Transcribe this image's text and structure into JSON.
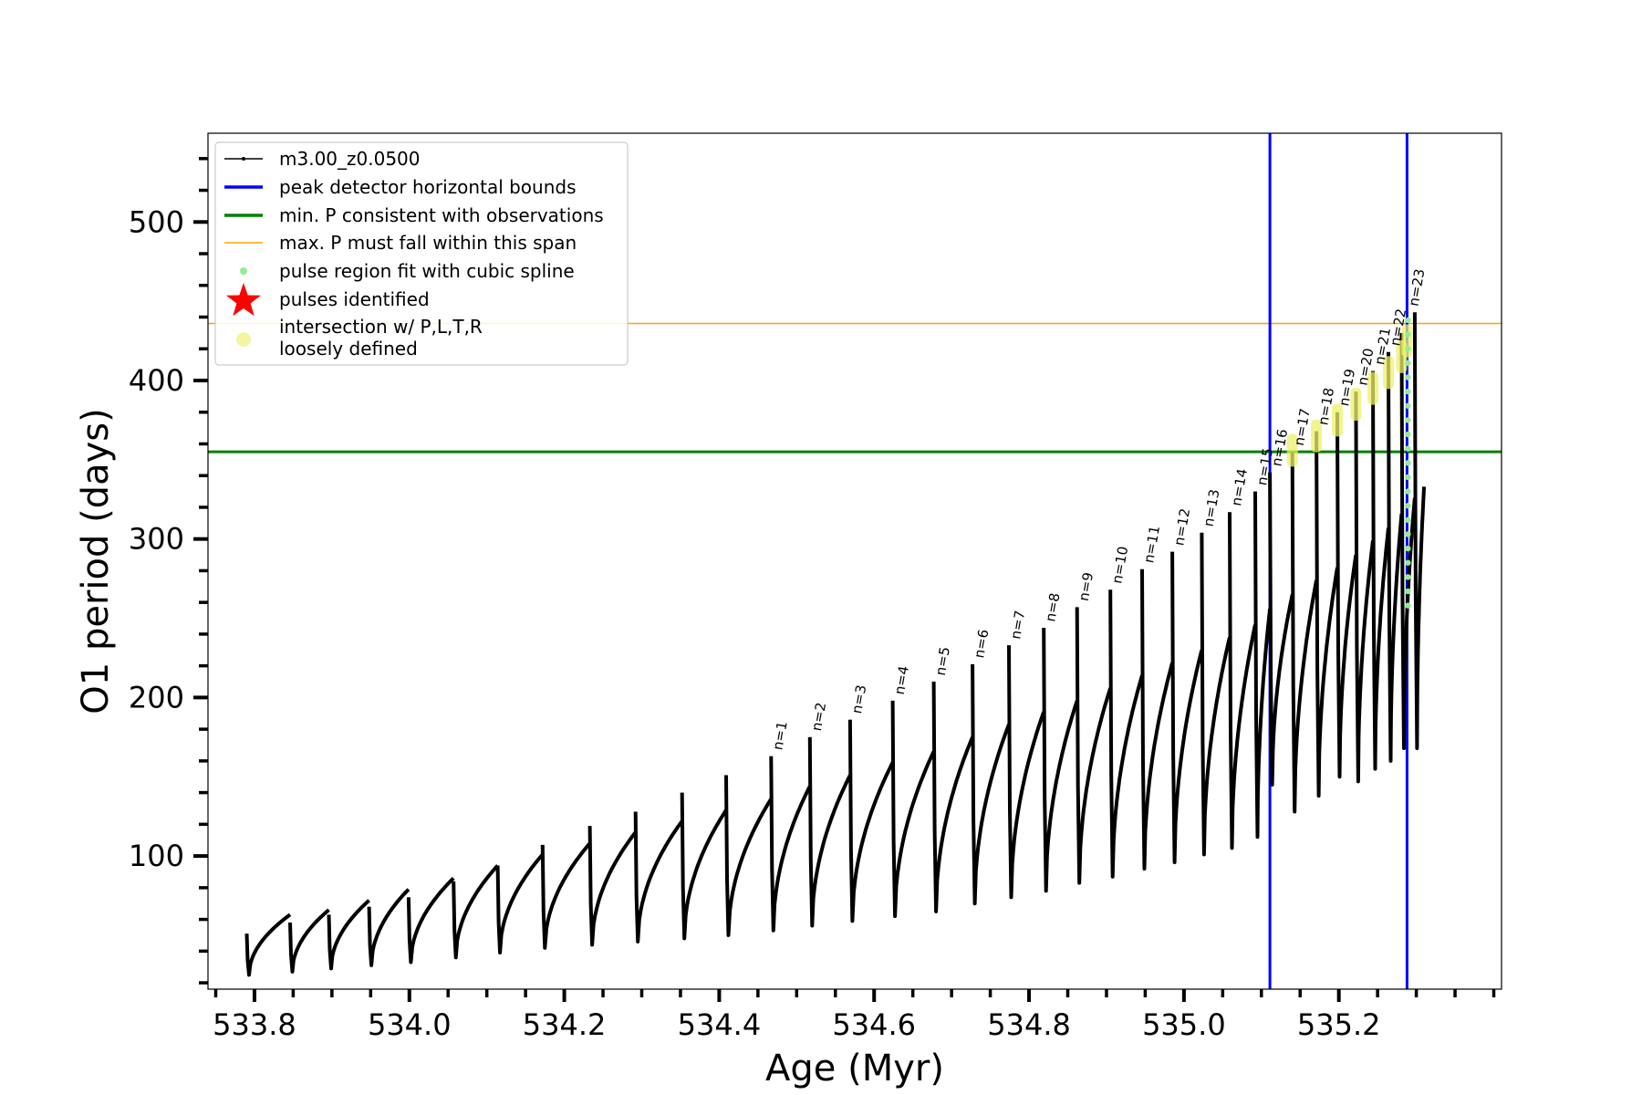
{
  "chart_data": {
    "type": "line",
    "title": "",
    "xlabel": "Age (Myr)",
    "ylabel": "O1 period (days)",
    "xlim": [
      533.74,
      535.41
    ],
    "ylim": [
      16,
      556
    ],
    "xticks": [
      533.8,
      534.0,
      534.2,
      534.4,
      534.6,
      534.8,
      535.0,
      535.2
    ],
    "xtick_labels": [
      "533.8",
      "534.0",
      "534.2",
      "534.4",
      "534.6",
      "534.8",
      "535.0",
      "535.2"
    ],
    "yticks": [
      100,
      200,
      300,
      400,
      500
    ],
    "ytick_labels": [
      "100",
      "200",
      "300",
      "400",
      "500"
    ],
    "grid": false,
    "legend_position": "top-left",
    "legend": [
      {
        "label": "m3.00_z0.0500",
        "kind": "line-marker",
        "color": "#000000"
      },
      {
        "label": "peak detector horizontal bounds",
        "kind": "line",
        "color": "#0000ff"
      },
      {
        "label": "min. P consistent with observations",
        "kind": "line",
        "color": "#008000"
      },
      {
        "label": "max. P must fall within this span",
        "kind": "thin-line",
        "color": "#ffa500"
      },
      {
        "label": "pulse region fit with cubic spline",
        "kind": "dot",
        "color": "#90ee90"
      },
      {
        "label": "pulses identified",
        "kind": "star",
        "color": "#ff0000"
      },
      {
        "label": "intersection w/ P,L,T,R",
        "label2": "loosely defined",
        "kind": "big-dot",
        "color": "#f5f5a0"
      }
    ],
    "reference_lines": {
      "vertical_blue_x": [
        535.111,
        535.288
      ],
      "horizontal_green_y": 355,
      "horizontal_orange_y": 436
    },
    "series": [
      {
        "name": "m3.00_z0.0500",
        "color": "#000000",
        "cycles": [
          {
            "start": 533.79,
            "end": 533.846,
            "spike": 51,
            "low": 25,
            "rise": 63
          },
          {
            "start": 533.846,
            "end": 533.896,
            "spike": 58,
            "low": 27,
            "rise": 66
          },
          {
            "start": 533.896,
            "end": 533.948,
            "spike": 63,
            "low": 29,
            "rise": 72
          },
          {
            "start": 533.948,
            "end": 533.999,
            "spike": 68,
            "low": 31,
            "rise": 79
          },
          {
            "start": 533.999,
            "end": 534.057,
            "spike": 74,
            "low": 33,
            "rise": 86
          },
          {
            "start": 534.057,
            "end": 534.114,
            "spike": 84,
            "low": 36,
            "rise": 94
          },
          {
            "start": 534.114,
            "end": 534.172,
            "spike": 94,
            "low": 39,
            "rise": 101
          },
          {
            "start": 534.172,
            "end": 534.233,
            "spike": 107,
            "low": 42,
            "rise": 108
          },
          {
            "start": 534.233,
            "end": 534.292,
            "spike": 119,
            "low": 44,
            "rise": 115
          },
          {
            "start": 534.292,
            "end": 534.352,
            "spike": 128,
            "low": 46,
            "rise": 122
          },
          {
            "start": 534.352,
            "end": 534.409,
            "spike": 140,
            "low": 48,
            "rise": 129
          },
          {
            "start": 534.409,
            "end": 534.467,
            "spike": 151,
            "low": 50,
            "rise": 136
          },
          {
            "start": 534.467,
            "end": 534.517,
            "spike": 163,
            "low": 53,
            "rise": 144
          },
          {
            "start": 534.517,
            "end": 534.569,
            "spike": 175,
            "low": 56,
            "rise": 151
          },
          {
            "start": 534.569,
            "end": 534.624,
            "spike": 186,
            "low": 59,
            "rise": 159
          },
          {
            "start": 534.624,
            "end": 534.677,
            "spike": 198,
            "low": 62,
            "rise": 166
          },
          {
            "start": 534.677,
            "end": 534.727,
            "spike": 210,
            "low": 65,
            "rise": 175
          },
          {
            "start": 534.727,
            "end": 534.774,
            "spike": 221,
            "low": 70,
            "rise": 183
          },
          {
            "start": 534.774,
            "end": 534.819,
            "spike": 233,
            "low": 74,
            "rise": 191
          },
          {
            "start": 534.819,
            "end": 534.862,
            "spike": 244,
            "low": 78,
            "rise": 198
          },
          {
            "start": 534.862,
            "end": 534.905,
            "spike": 257,
            "low": 83,
            "rise": 206
          },
          {
            "start": 534.905,
            "end": 534.946,
            "spike": 268,
            "low": 87,
            "rise": 214
          },
          {
            "start": 534.946,
            "end": 534.985,
            "spike": 281,
            "low": 92,
            "rise": 222
          },
          {
            "start": 534.985,
            "end": 535.023,
            "spike": 292,
            "low": 96,
            "rise": 230
          },
          {
            "start": 535.023,
            "end": 535.059,
            "spike": 304,
            "low": 101,
            "rise": 238
          },
          {
            "start": 535.059,
            "end": 535.092,
            "spike": 317,
            "low": 105,
            "rise": 246
          },
          {
            "start": 535.092,
            "end": 535.111,
            "spike": 330,
            "low": 112,
            "rise": 256
          },
          {
            "start": 535.111,
            "end": 535.14,
            "spike": 342,
            "low": 145,
            "rise": 265
          },
          {
            "start": 535.14,
            "end": 535.171,
            "spike": 355,
            "low": 128,
            "rise": 274
          },
          {
            "start": 535.171,
            "end": 535.198,
            "spike": 368,
            "low": 138,
            "rise": 282
          },
          {
            "start": 535.198,
            "end": 535.222,
            "spike": 380,
            "low": 150,
            "rise": 290
          },
          {
            "start": 535.222,
            "end": 535.244,
            "spike": 393,
            "low": 147,
            "rise": 299
          },
          {
            "start": 535.244,
            "end": 535.264,
            "spike": 406,
            "low": 155,
            "rise": 307
          },
          {
            "start": 535.264,
            "end": 535.281,
            "spike": 418,
            "low": 160,
            "rise": 316
          },
          {
            "start": 535.281,
            "end": 535.298,
            "spike": 430,
            "low": 168,
            "rise": 326
          },
          {
            "start": 535.298,
            "end": 535.31,
            "spike": 443,
            "low": 168,
            "rise": 333
          }
        ]
      }
    ],
    "pulse_labels": [
      {
        "text": "n=1",
        "x": 534.467,
        "y": 163
      },
      {
        "text": "n=2",
        "x": 534.517,
        "y": 175
      },
      {
        "text": "n=3",
        "x": 534.569,
        "y": 186
      },
      {
        "text": "n=4",
        "x": 534.624,
        "y": 198
      },
      {
        "text": "n=5",
        "x": 534.677,
        "y": 210
      },
      {
        "text": "n=6",
        "x": 534.727,
        "y": 221
      },
      {
        "text": "n=7",
        "x": 534.774,
        "y": 233
      },
      {
        "text": "n=8",
        "x": 534.819,
        "y": 244
      },
      {
        "text": "n=9",
        "x": 534.862,
        "y": 257
      },
      {
        "text": "n=10",
        "x": 534.905,
        "y": 268
      },
      {
        "text": "n=11",
        "x": 534.946,
        "y": 281
      },
      {
        "text": "n=12",
        "x": 534.985,
        "y": 292
      },
      {
        "text": "n=13",
        "x": 535.023,
        "y": 304
      },
      {
        "text": "n=14",
        "x": 535.059,
        "y": 317
      },
      {
        "text": "n=15",
        "x": 535.092,
        "y": 330
      },
      {
        "text": "n=16",
        "x": 535.111,
        "y": 342
      },
      {
        "text": "n=17",
        "x": 535.14,
        "y": 355
      },
      {
        "text": "n=18",
        "x": 535.171,
        "y": 368
      },
      {
        "text": "n=19",
        "x": 535.198,
        "y": 380
      },
      {
        "text": "n=20",
        "x": 535.222,
        "y": 393
      },
      {
        "text": "n=21",
        "x": 535.244,
        "y": 406
      },
      {
        "text": "n=22",
        "x": 535.264,
        "y": 418
      },
      {
        "text": "n=23",
        "x": 535.288,
        "y": 443
      }
    ],
    "spline_points": {
      "x": 535.288,
      "y_range": [
        258,
        445
      ]
    },
    "loose_intersections": [
      {
        "x": 535.14,
        "y": 356
      },
      {
        "x": 535.171,
        "y": 365
      },
      {
        "x": 535.198,
        "y": 375
      },
      {
        "x": 535.222,
        "y": 385
      },
      {
        "x": 535.244,
        "y": 395
      },
      {
        "x": 535.264,
        "y": 405
      },
      {
        "x": 535.281,
        "y": 415
      },
      {
        "x": 535.288,
        "y": 425
      }
    ]
  }
}
